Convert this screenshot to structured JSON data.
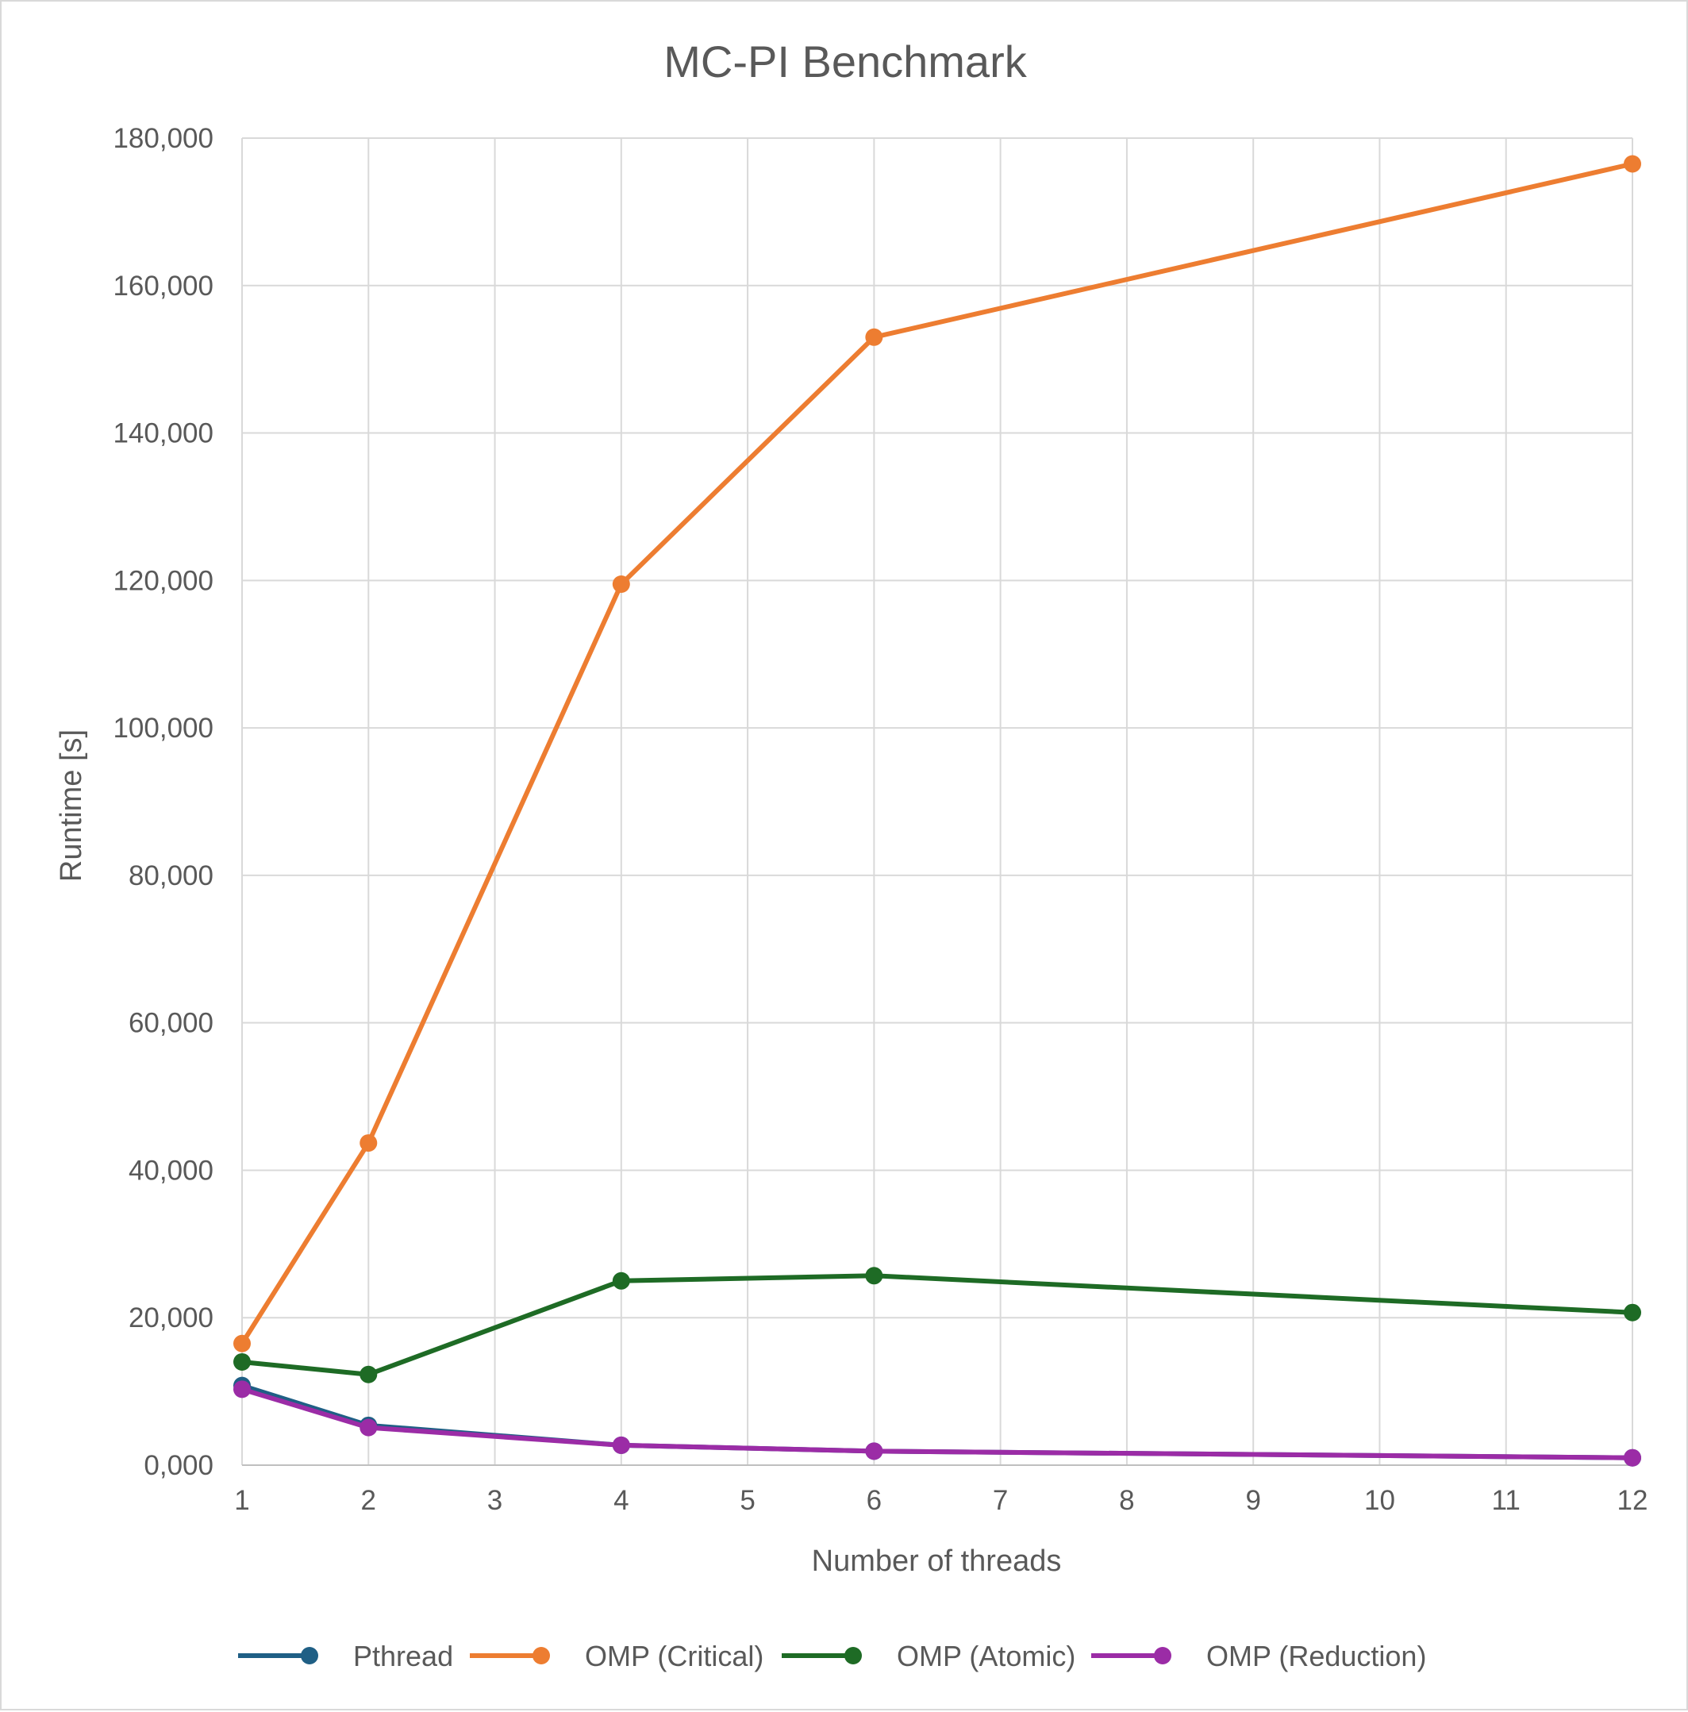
{
  "chart_data": {
    "type": "line",
    "title": "MC-PI Benchmark",
    "xlabel": "Number of threads",
    "ylabel": "Runtime [s]",
    "x_scale": "linear",
    "xlim": [
      1,
      12
    ],
    "ylim": [
      0,
      180000
    ],
    "x_ticks": [
      "1",
      "2",
      "3",
      "4",
      "5",
      "6",
      "7",
      "8",
      "9",
      "10",
      "11",
      "12"
    ],
    "y_ticks": [
      "0,000",
      "20,000",
      "40,000",
      "60,000",
      "80,000",
      "100,000",
      "120,000",
      "140,000",
      "160,000",
      "180,000"
    ],
    "grid": "on",
    "legend_position": "bottom",
    "x": [
      1,
      2,
      4,
      6,
      12
    ],
    "series": [
      {
        "name": "Pthread",
        "color": "#1f5f85",
        "values": [
          10800,
          5400,
          2700,
          1900,
          1000
        ]
      },
      {
        "name": "OMP (Critical)",
        "color": "#ed7d31",
        "values": [
          16500,
          43700,
          119500,
          153000,
          176500
        ]
      },
      {
        "name": "OMP (Atomic)",
        "color": "#1e6b25",
        "values": [
          14000,
          12300,
          25000,
          25700,
          20700
        ]
      },
      {
        "name": "OMP (Reduction)",
        "color": "#9b2ca6",
        "values": [
          10300,
          5100,
          2700,
          1900,
          1000
        ]
      }
    ]
  }
}
